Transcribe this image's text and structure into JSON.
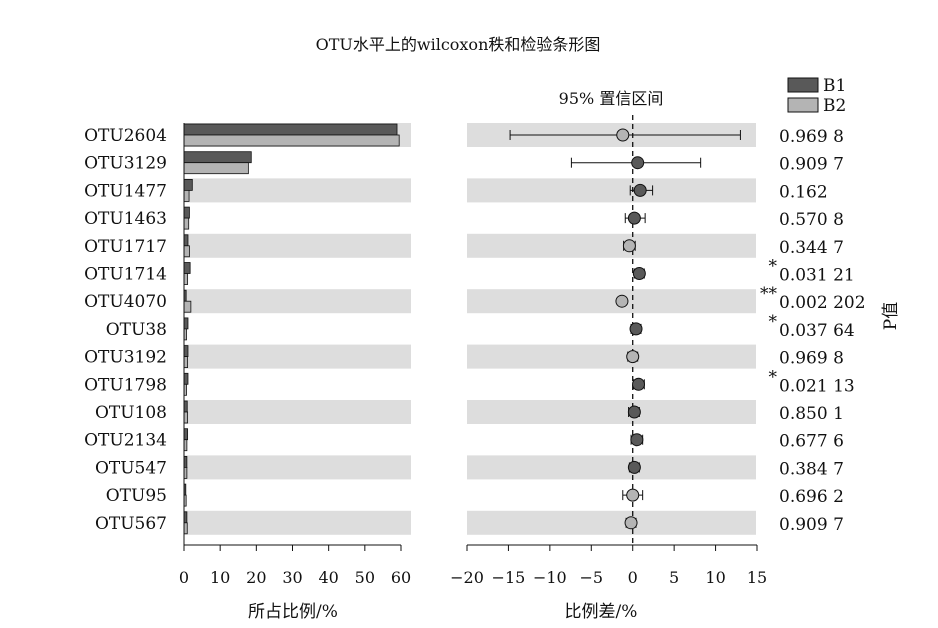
{
  "colors": {
    "b1": "#595959",
    "b2": "#b4b4b4",
    "stripe": "#dddddd",
    "axis": "#111111"
  },
  "chart_data": [
    {
      "type": "bar",
      "title": "OTU水平上的wilcoxon秩和检验条形图",
      "xlabel": "所占比例/%",
      "ylabel": "",
      "xlim": [
        0,
        60
      ],
      "x_ticks": [
        0,
        10,
        20,
        30,
        40,
        50,
        60
      ],
      "categories": [
        "OTU2604",
        "OTU3129",
        "OTU1477",
        "OTU1463",
        "OTU1717",
        "OTU1714",
        "OTU4070",
        "OTU38",
        "OTU3192",
        "OTU1798",
        "OTU108",
        "OTU2134",
        "OTU547",
        "OTU95",
        "OTU567"
      ],
      "series": [
        {
          "name": "B1",
          "values": [
            58.9,
            18.6,
            2.3,
            1.5,
            1.1,
            1.7,
            0.6,
            1.1,
            1.1,
            1.1,
            0.9,
            1.0,
            0.8,
            0.5,
            0.8
          ]
        },
        {
          "name": "B2",
          "values": [
            59.5,
            17.8,
            1.4,
            1.3,
            1.5,
            1.0,
            1.9,
            0.7,
            1.0,
            0.7,
            1.0,
            0.8,
            0.8,
            0.6,
            0.9
          ]
        }
      ],
      "legend": "top-right",
      "grid": false
    },
    {
      "type": "scatter",
      "title": "95% 置信区间",
      "xlabel": "比例差/%",
      "ylabel": "P值",
      "xlim": [
        -20,
        15
      ],
      "x_ticks": [
        -20,
        -15,
        -10,
        -5,
        0,
        5,
        10,
        15
      ],
      "x_tick_labels": [
        "−20",
        "−15",
        "−10",
        "−5",
        "0",
        "5",
        "10",
        "15"
      ],
      "categories": [
        "OTU2604",
        "OTU3129",
        "OTU1477",
        "OTU1463",
        "OTU1717",
        "OTU1714",
        "OTU4070",
        "OTU38",
        "OTU3192",
        "OTU1798",
        "OTU108",
        "OTU2134",
        "OTU547",
        "OTU95",
        "OTU567"
      ],
      "points": [
        {
          "x": -1.2,
          "lo": -14.8,
          "hi": 13.0,
          "group": "B2"
        },
        {
          "x": 0.6,
          "lo": -7.4,
          "hi": 8.2,
          "group": "B1"
        },
        {
          "x": 0.9,
          "lo": -0.3,
          "hi": 2.4,
          "group": "B1"
        },
        {
          "x": 0.2,
          "lo": -0.9,
          "hi": 1.5,
          "group": "B1"
        },
        {
          "x": -0.4,
          "lo": -1.1,
          "hi": 0.3,
          "group": "B2"
        },
        {
          "x": 0.8,
          "lo": 0.2,
          "hi": 1.4,
          "group": "B1"
        },
        {
          "x": -1.3,
          "lo": -1.3,
          "hi": -1.3,
          "group": "B2"
        },
        {
          "x": 0.4,
          "lo": -0.2,
          "hi": 1.0,
          "group": "B1"
        },
        {
          "x": 0.0,
          "lo": -0.6,
          "hi": 0.6,
          "group": "B2"
        },
        {
          "x": 0.7,
          "lo": 0.1,
          "hi": 1.4,
          "group": "B1"
        },
        {
          "x": 0.2,
          "lo": -0.5,
          "hi": 0.8,
          "group": "B1"
        },
        {
          "x": 0.5,
          "lo": -0.2,
          "hi": 1.2,
          "group": "B1"
        },
        {
          "x": 0.2,
          "lo": -0.4,
          "hi": 0.8,
          "group": "B1"
        },
        {
          "x": 0.0,
          "lo": -1.2,
          "hi": 1.2,
          "group": "B2"
        },
        {
          "x": -0.2,
          "lo": -0.8,
          "hi": 0.4,
          "group": "B2"
        }
      ],
      "p_values": [
        "0.969 8",
        "0.909 7",
        "0.162",
        "0.570 8",
        "0.344 7",
        "0.031 21",
        "0.002 202",
        "0.037 64",
        "0.969 8",
        "0.021 13",
        "0.850 1",
        "0.677 6",
        "0.384 7",
        "0.696 2",
        "0.909 7"
      ],
      "significance": [
        "",
        "",
        "",
        "",
        "",
        "*",
        "**",
        "*",
        "",
        "*",
        "",
        "",
        "",
        "",
        ""
      ],
      "reference_line_x": 0
    }
  ]
}
